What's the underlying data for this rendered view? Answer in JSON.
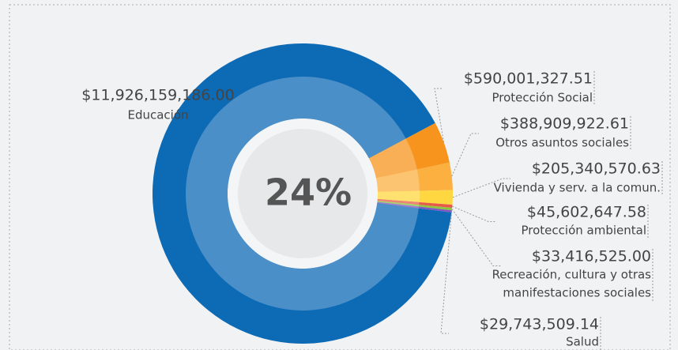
{
  "chart_data": {
    "type": "donut",
    "center_label": "24%",
    "categories": [
      "Educación",
      "Protección Social",
      "Otros asuntos sociales",
      "Vivienda y serv. a la comun.",
      "Protección ambiental",
      [
        "Recreación, cultura y otras",
        "manifestaciones sociales"
      ],
      "Salud"
    ],
    "values": [
      11926159186.0,
      590001327.51,
      388909922.61,
      205340570.63,
      45602647.58,
      33416525.0,
      29743509.14
    ],
    "value_labels": [
      "$11,926,159,186.00",
      "$590,001,327.51",
      "$388,909,922.61",
      "$205,340,570.63",
      "$45,602,647.58",
      "$33,416,525.00",
      "$29,743,509.14"
    ],
    "colors": [
      "#0d6ab5",
      "#f7941d",
      "#fbb040",
      "#ffd740",
      "#e8594a",
      "#8dc63f",
      "#7e57c2"
    ]
  }
}
